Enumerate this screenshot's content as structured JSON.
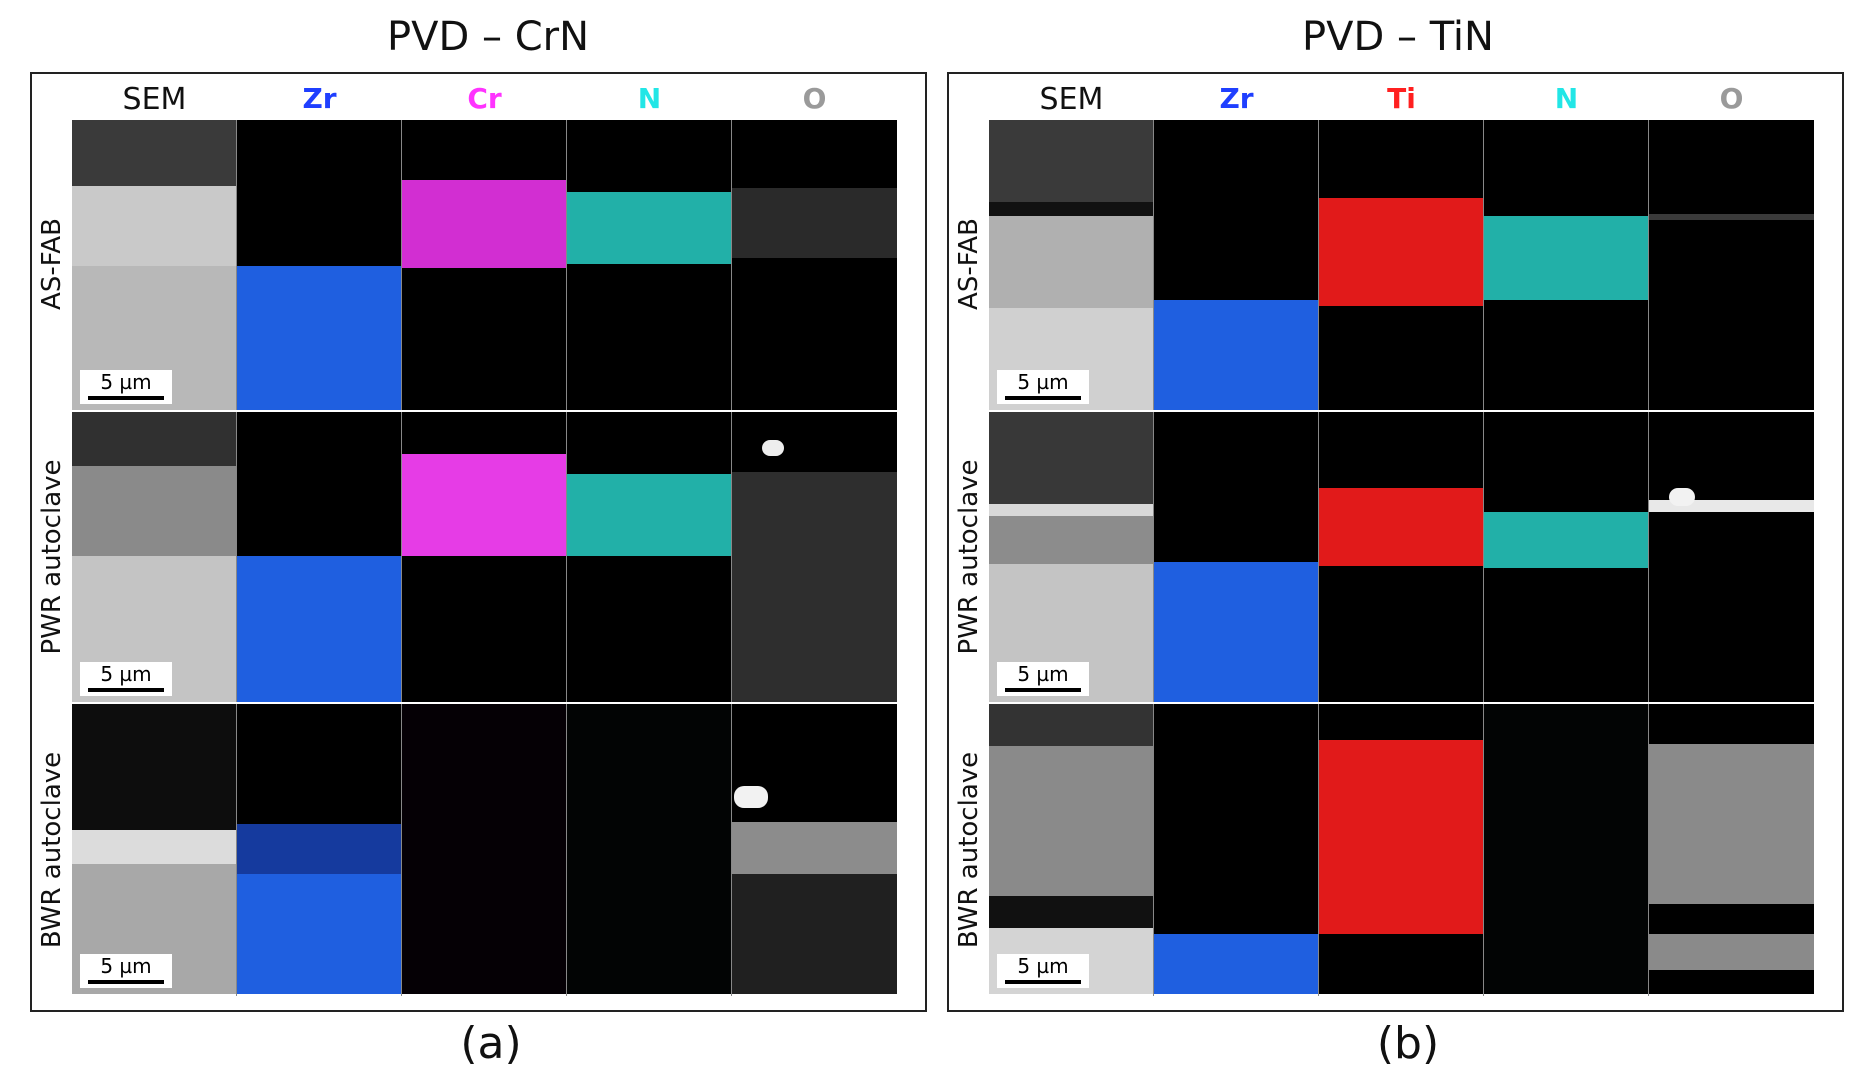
{
  "panels": [
    {
      "title": "PVD – CrN",
      "label": "(a)",
      "columns": [
        {
          "label": "SEM",
          "color": "#111111"
        },
        {
          "label": "Zr",
          "color": "#1f3fff"
        },
        {
          "label": "Cr",
          "color": "#ff33ff"
        },
        {
          "label": "N",
          "color": "#22e6e6"
        },
        {
          "label": "O",
          "color": "#9a9a9a"
        }
      ],
      "rows": [
        "AS-FAB",
        "PWR autoclave",
        "BWR autoclave"
      ]
    },
    {
      "title": "PVD – TiN",
      "label": "(b)",
      "columns": [
        {
          "label": "SEM",
          "color": "#111111"
        },
        {
          "label": "Zr",
          "color": "#1f3fff"
        },
        {
          "label": "Ti",
          "color": "#ff2020"
        },
        {
          "label": "N",
          "color": "#22e6e6"
        },
        {
          "label": "O",
          "color": "#9a9a9a"
        }
      ],
      "rows": [
        "AS-FAB",
        "PWR autoclave",
        "BWR autoclave"
      ]
    }
  ],
  "scale_bar": "5 µm"
}
